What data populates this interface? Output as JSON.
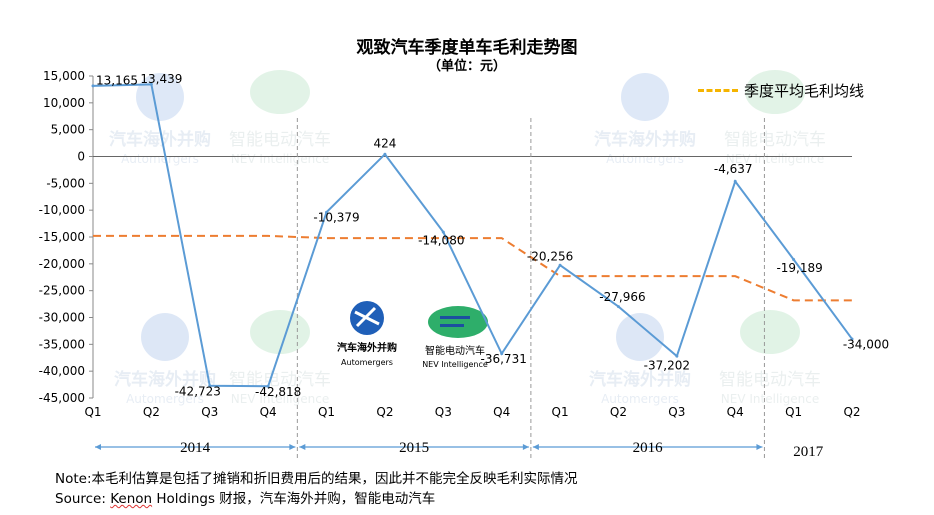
{
  "chart_data": {
    "type": "line",
    "title": "观致汽车季度单车毛利走势图",
    "subtitle": "（单位：元）",
    "ylim": [
      -45000,
      15000
    ],
    "yticks": [
      15000,
      10000,
      5000,
      0,
      -5000,
      -10000,
      -15000,
      -20000,
      -25000,
      -30000,
      -35000,
      -40000,
      -45000
    ],
    "ytick_labels": [
      "15,000",
      "10,000",
      "5,000",
      "0",
      "-5,000",
      "-10,000",
      "-15,000",
      "-20,000",
      "-25,000",
      "-30,000",
      "-35,000",
      "-40,000",
      "-45,000"
    ],
    "categories": [
      "Q1",
      "Q2",
      "Q3",
      "Q4",
      "Q1",
      "Q2",
      "Q3",
      "Q4",
      "Q1",
      "Q2",
      "Q3",
      "Q4",
      "Q1",
      "Q2"
    ],
    "years": [
      {
        "label": "2014",
        "start": 0,
        "end": 3
      },
      {
        "label": "2015",
        "start": 4,
        "end": 7
      },
      {
        "label": "2016",
        "start": 8,
        "end": 11
      },
      {
        "label": "2017",
        "start": 12,
        "end": 13
      }
    ],
    "series": [
      {
        "kind": "solid",
        "color": "#5b9bd5",
        "values": [
          13165,
          13439,
          -42723,
          -42818,
          -10379,
          424,
          -14080,
          -36731,
          -20256,
          -27966,
          -37202,
          -4637,
          -19189,
          -34000
        ],
        "labels": [
          "13,165",
          "13,439",
          "-42,723",
          "-42,818",
          "-10,379",
          "424",
          "-14,080",
          "-36,731",
          "-20,256",
          "-27,966",
          "-37,202",
          "-4,637",
          "-19,189",
          "-34,000"
        ]
      },
      {
        "name": "季度平均毛利均线",
        "kind": "dashed",
        "color": "#ed7d31",
        "values": [
          -14800,
          -14800,
          -14800,
          -14800,
          -15200,
          -15200,
          -15200,
          -15200,
          -22300,
          -22300,
          -22300,
          -22300,
          -26800,
          -26800
        ]
      }
    ],
    "legend": {
      "label": "季度平均毛利均线",
      "color": "#f5b400",
      "position": "top-right"
    },
    "watermarks": [
      "汽车海外并购",
      "Automergers",
      "智能电动汽车",
      "NEV Intelligence"
    ]
  },
  "notes": {
    "line1": "Note:本毛利估算是包括了摊销和折旧费用后的结果，因此并不能完全反映毛利实际情况",
    "line2_prefix": "Source: ",
    "line2_source": "Kenon",
    "line2_rest": " Holdings 财报，汽车海外并购，智能电动汽车"
  }
}
